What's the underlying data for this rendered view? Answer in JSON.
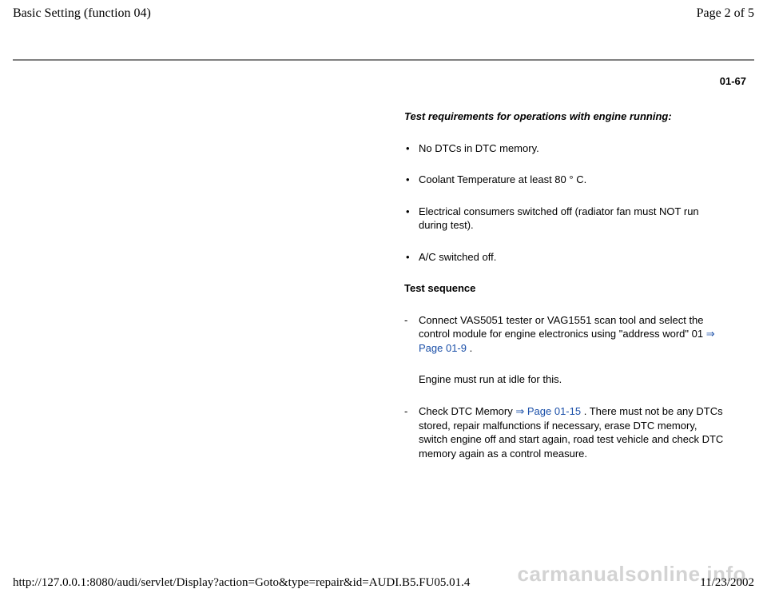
{
  "header": {
    "title": "Basic Setting (function 04)",
    "page_info": "Page 2 of 5"
  },
  "page_ref": "01-67",
  "content": {
    "requirements_heading": "Test requirements for operations with engine running:",
    "bullets": {
      "b1": "No DTCs in DTC memory.",
      "b2_pre": "Coolant Temperature at least 80 ",
      "b2_deg": "°",
      "b2_post": " C.",
      "b3": "Electrical consumers switched off (radiator fan must NOT run during test).",
      "b4": "A/C switched off."
    },
    "sequence_heading": "Test sequence",
    "steps": {
      "s1_dash": "-",
      "s1_text": "Connect VAS5051 tester or VAG1551 scan tool and select the control module for engine electronics using \"address word\" 01 ",
      "s1_arrow": "⇒",
      "s1_link": " Page 01-9",
      "s1_after": " .",
      "s2_text": "Engine must run at idle for this.",
      "s3_dash": "-",
      "s3_text_a": "Check DTC Memory ",
      "s3_arrow": "⇒",
      "s3_link": " Page 01-15",
      "s3_text_b": " . There must not be any DTCs stored, repair malfunctions if necessary, erase DTC memory, switch engine off and start again, road test vehicle and check DTC memory again as a control measure."
    }
  },
  "footer": {
    "url": "http://127.0.0.1:8080/audi/servlet/Display?action=Goto&type=repair&id=AUDI.B5.FU05.01.4",
    "date": "11/23/2002"
  },
  "watermark": "carmanualsonline.info"
}
